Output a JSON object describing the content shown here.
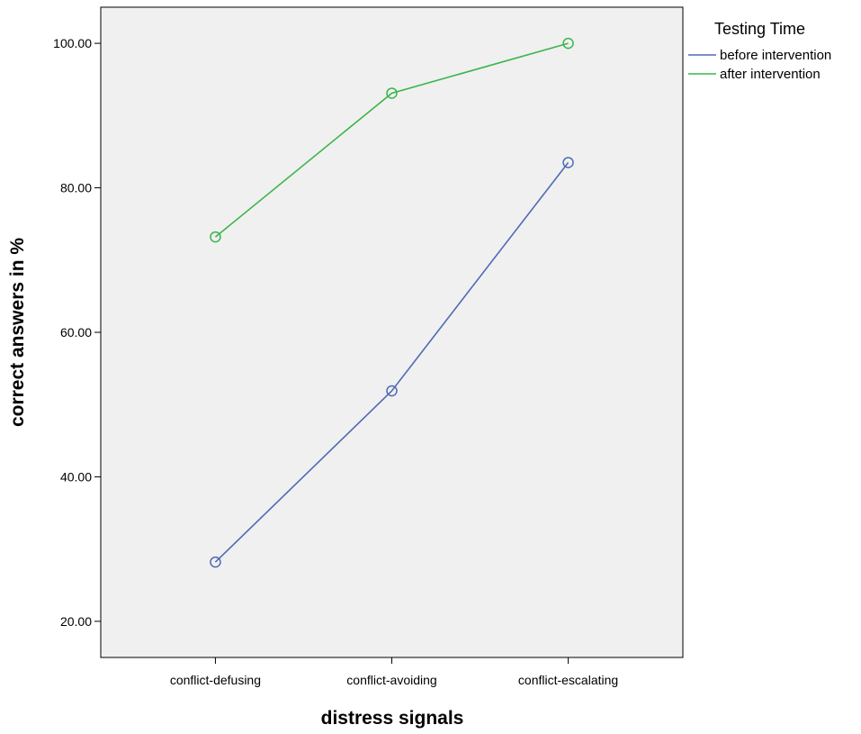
{
  "chart_data": {
    "type": "line",
    "xlabel": "distress signals",
    "ylabel": "correct answers in %",
    "categories": [
      "conflict-defusing",
      "conflict-avoiding",
      "conflict-escalating"
    ],
    "ylim": [
      15,
      105
    ],
    "yticks": [
      "20.00",
      "40.00",
      "60.00",
      "80.00",
      "100.00"
    ],
    "ytick_values": [
      20,
      40,
      60,
      80,
      100
    ],
    "grid": false,
    "legend": {
      "title": "Testing Time",
      "placement": "right"
    },
    "series": [
      {
        "name": "before intervention",
        "color": "#4f6bb5",
        "values": [
          28.2,
          51.9,
          83.5
        ],
        "marker": "open-circle"
      },
      {
        "name": "after intervention",
        "color": "#3ab54a",
        "values": [
          73.2,
          93.1,
          100.0
        ],
        "marker": "open-circle"
      }
    ],
    "plot_background": "#f0f0f0"
  }
}
